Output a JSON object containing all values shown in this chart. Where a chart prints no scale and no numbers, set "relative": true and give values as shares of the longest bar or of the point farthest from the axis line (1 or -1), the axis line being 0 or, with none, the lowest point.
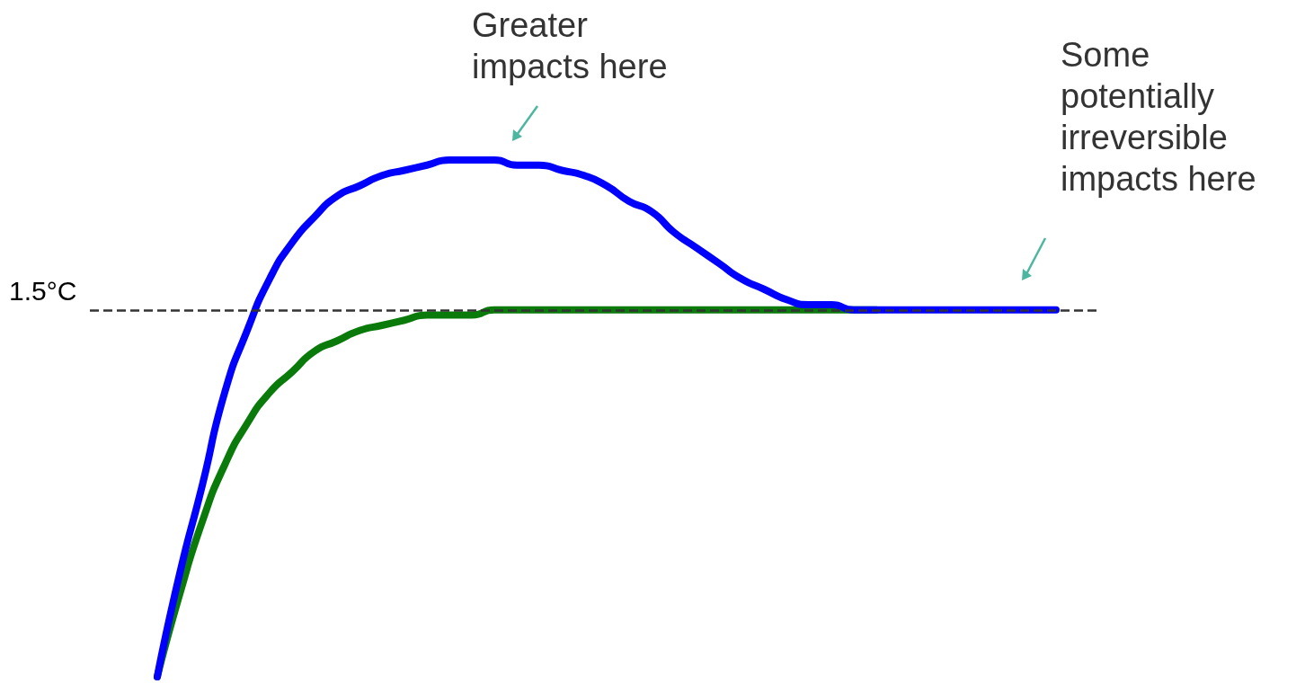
{
  "chart_data": {
    "type": "line",
    "relative": true,
    "categories": [
      null,
      null,
      null,
      null,
      null,
      null,
      null,
      null,
      null,
      null,
      null,
      null,
      null,
      null,
      null,
      null,
      null,
      null,
      null,
      null,
      null,
      null,
      null,
      null,
      null,
      null,
      null,
      null,
      null,
      null,
      null,
      null,
      null,
      null,
      null,
      null,
      null,
      null,
      null,
      null,
      null,
      null,
      null,
      null,
      null,
      null
    ],
    "series": [
      {
        "color": "#0a7a0a",
        "values": [
          null,
          null,
          null,
          0,
          0.16,
          0.3,
          0.41,
          0.49,
          0.55,
          0.59,
          0.63,
          0.65,
          0.67,
          0.68,
          0.69,
          0.7,
          0.7,
          0.7,
          0.71,
          0.71,
          0.71,
          0.71,
          0.71,
          0.71,
          0.71,
          0.71,
          0.71,
          0.71,
          0.71,
          0.71,
          0.71,
          0.71,
          0.71,
          0.71,
          0.71,
          0.71,
          null,
          null,
          null,
          null,
          null,
          null,
          null,
          null,
          null,
          null
        ]
      },
      {
        "color": "#0000ff",
        "values": [
          null,
          null,
          null,
          0,
          0.2,
          0.37,
          0.55,
          0.67,
          0.77,
          0.84,
          0.89,
          0.93,
          0.95,
          0.97,
          0.98,
          0.99,
          1,
          1,
          1,
          0.99,
          0.99,
          0.98,
          0.97,
          0.95,
          0.92,
          0.9,
          0.86,
          0.83,
          0.8,
          0.77,
          0.75,
          0.73,
          0.72,
          0.72,
          0.71,
          0.71,
          0.71,
          0.71,
          0.71,
          0.71,
          0.71,
          0.71,
          0.71,
          0.71,
          null,
          null
        ]
      }
    ],
    "ref_lines": [
      {
        "axis": "y",
        "value": 0.71,
        "label": "1.5°C",
        "color": "#333333",
        "line_style": "dashed"
      }
    ],
    "annotations": [
      "Greater impacts here",
      "Some potentially irreversible impacts here"
    ],
    "grid": false,
    "line_style": "solid"
  }
}
